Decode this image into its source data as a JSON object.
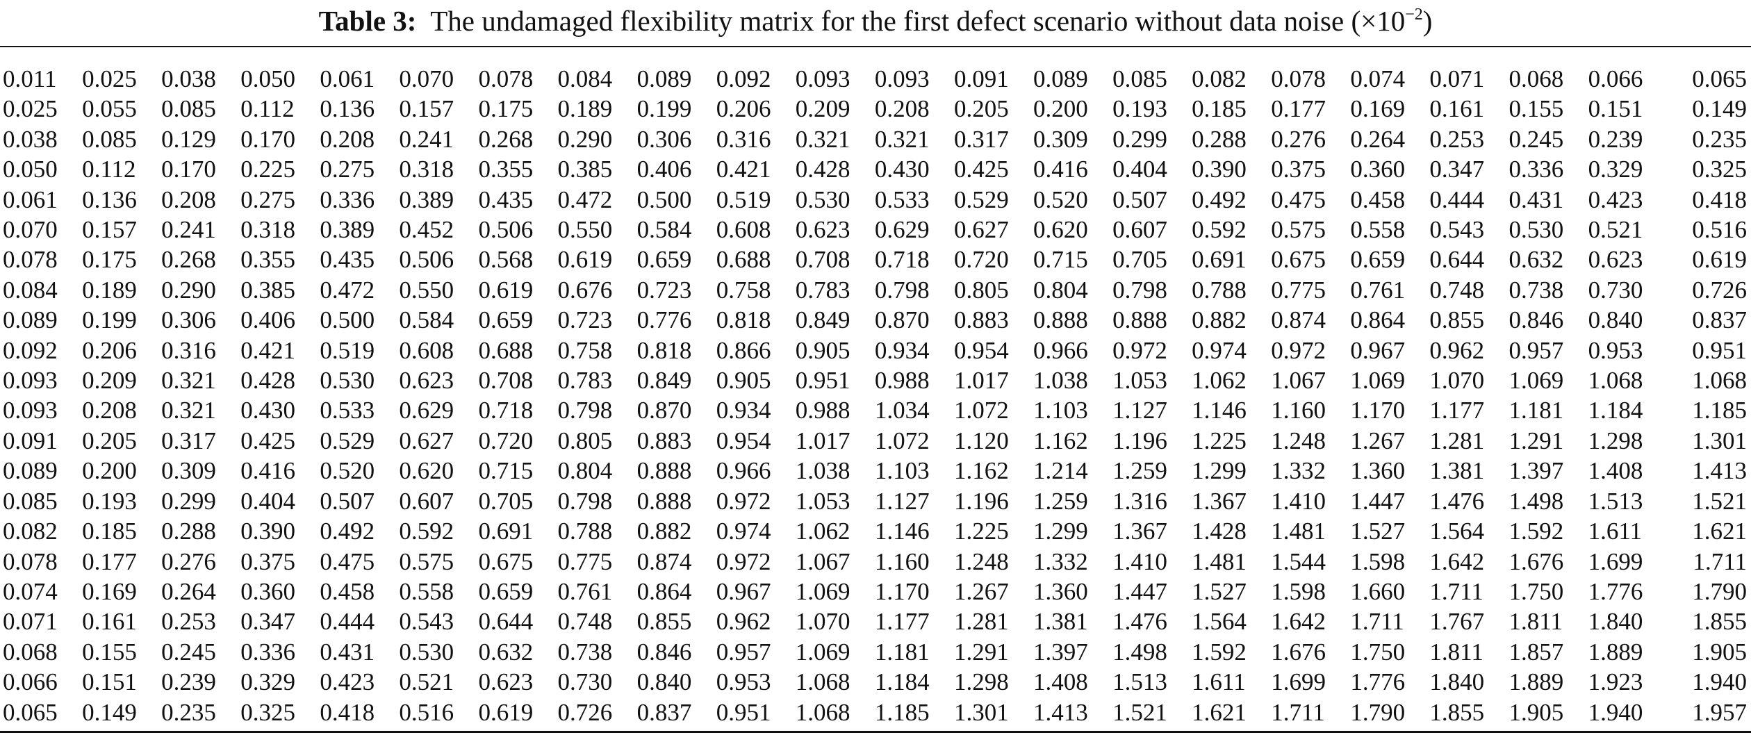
{
  "caption": {
    "label": "Table 3:",
    "text": "The undamaged flexibility matrix for the first defect scenario without data noise (×10",
    "exponent": "−2",
    "close": ")"
  },
  "matrix": [
    [
      "0.011",
      "0.025",
      "0.038",
      "0.050",
      "0.061",
      "0.070",
      "0.078",
      "0.084",
      "0.089",
      "0.092",
      "0.093",
      "0.093",
      "0.091",
      "0.089",
      "0.085",
      "0.082",
      "0.078",
      "0.074",
      "0.071",
      "0.068",
      "0.066",
      "0.065"
    ],
    [
      "0.025",
      "0.055",
      "0.085",
      "0.112",
      "0.136",
      "0.157",
      "0.175",
      "0.189",
      "0.199",
      "0.206",
      "0.209",
      "0.208",
      "0.205",
      "0.200",
      "0.193",
      "0.185",
      "0.177",
      "0.169",
      "0.161",
      "0.155",
      "0.151",
      "0.149"
    ],
    [
      "0.038",
      "0.085",
      "0.129",
      "0.170",
      "0.208",
      "0.241",
      "0.268",
      "0.290",
      "0.306",
      "0.316",
      "0.321",
      "0.321",
      "0.317",
      "0.309",
      "0.299",
      "0.288",
      "0.276",
      "0.264",
      "0.253",
      "0.245",
      "0.239",
      "0.235"
    ],
    [
      "0.050",
      "0.112",
      "0.170",
      "0.225",
      "0.275",
      "0.318",
      "0.355",
      "0.385",
      "0.406",
      "0.421",
      "0.428",
      "0.430",
      "0.425",
      "0.416",
      "0.404",
      "0.390",
      "0.375",
      "0.360",
      "0.347",
      "0.336",
      "0.329",
      "0.325"
    ],
    [
      "0.061",
      "0.136",
      "0.208",
      "0.275",
      "0.336",
      "0.389",
      "0.435",
      "0.472",
      "0.500",
      "0.519",
      "0.530",
      "0.533",
      "0.529",
      "0.520",
      "0.507",
      "0.492",
      "0.475",
      "0.458",
      "0.444",
      "0.431",
      "0.423",
      "0.418"
    ],
    [
      "0.070",
      "0.157",
      "0.241",
      "0.318",
      "0.389",
      "0.452",
      "0.506",
      "0.550",
      "0.584",
      "0.608",
      "0.623",
      "0.629",
      "0.627",
      "0.620",
      "0.607",
      "0.592",
      "0.575",
      "0.558",
      "0.543",
      "0.530",
      "0.521",
      "0.516"
    ],
    [
      "0.078",
      "0.175",
      "0.268",
      "0.355",
      "0.435",
      "0.506",
      "0.568",
      "0.619",
      "0.659",
      "0.688",
      "0.708",
      "0.718",
      "0.720",
      "0.715",
      "0.705",
      "0.691",
      "0.675",
      "0.659",
      "0.644",
      "0.632",
      "0.623",
      "0.619"
    ],
    [
      "0.084",
      "0.189",
      "0.290",
      "0.385",
      "0.472",
      "0.550",
      "0.619",
      "0.676",
      "0.723",
      "0.758",
      "0.783",
      "0.798",
      "0.805",
      "0.804",
      "0.798",
      "0.788",
      "0.775",
      "0.761",
      "0.748",
      "0.738",
      "0.730",
      "0.726"
    ],
    [
      "0.089",
      "0.199",
      "0.306",
      "0.406",
      "0.500",
      "0.584",
      "0.659",
      "0.723",
      "0.776",
      "0.818",
      "0.849",
      "0.870",
      "0.883",
      "0.888",
      "0.888",
      "0.882",
      "0.874",
      "0.864",
      "0.855",
      "0.846",
      "0.840",
      "0.837"
    ],
    [
      "0.092",
      "0.206",
      "0.316",
      "0.421",
      "0.519",
      "0.608",
      "0.688",
      "0.758",
      "0.818",
      "0.866",
      "0.905",
      "0.934",
      "0.954",
      "0.966",
      "0.972",
      "0.974",
      "0.972",
      "0.967",
      "0.962",
      "0.957",
      "0.953",
      "0.951"
    ],
    [
      "0.093",
      "0.209",
      "0.321",
      "0.428",
      "0.530",
      "0.623",
      "0.708",
      "0.783",
      "0.849",
      "0.905",
      "0.951",
      "0.988",
      "1.017",
      "1.038",
      "1.053",
      "1.062",
      "1.067",
      "1.069",
      "1.070",
      "1.069",
      "1.068",
      "1.068"
    ],
    [
      "0.093",
      "0.208",
      "0.321",
      "0.430",
      "0.533",
      "0.629",
      "0.718",
      "0.798",
      "0.870",
      "0.934",
      "0.988",
      "1.034",
      "1.072",
      "1.103",
      "1.127",
      "1.146",
      "1.160",
      "1.170",
      "1.177",
      "1.181",
      "1.184",
      "1.185"
    ],
    [
      "0.091",
      "0.205",
      "0.317",
      "0.425",
      "0.529",
      "0.627",
      "0.720",
      "0.805",
      "0.883",
      "0.954",
      "1.017",
      "1.072",
      "1.120",
      "1.162",
      "1.196",
      "1.225",
      "1.248",
      "1.267",
      "1.281",
      "1.291",
      "1.298",
      "1.301"
    ],
    [
      "0.089",
      "0.200",
      "0.309",
      "0.416",
      "0.520",
      "0.620",
      "0.715",
      "0.804",
      "0.888",
      "0.966",
      "1.038",
      "1.103",
      "1.162",
      "1.214",
      "1.259",
      "1.299",
      "1.332",
      "1.360",
      "1.381",
      "1.397",
      "1.408",
      "1.413"
    ],
    [
      "0.085",
      "0.193",
      "0.299",
      "0.404",
      "0.507",
      "0.607",
      "0.705",
      "0.798",
      "0.888",
      "0.972",
      "1.053",
      "1.127",
      "1.196",
      "1.259",
      "1.316",
      "1.367",
      "1.410",
      "1.447",
      "1.476",
      "1.498",
      "1.513",
      "1.521"
    ],
    [
      "0.082",
      "0.185",
      "0.288",
      "0.390",
      "0.492",
      "0.592",
      "0.691",
      "0.788",
      "0.882",
      "0.974",
      "1.062",
      "1.146",
      "1.225",
      "1.299",
      "1.367",
      "1.428",
      "1.481",
      "1.527",
      "1.564",
      "1.592",
      "1.611",
      "1.621"
    ],
    [
      "0.078",
      "0.177",
      "0.276",
      "0.375",
      "0.475",
      "0.575",
      "0.675",
      "0.775",
      "0.874",
      "0.972",
      "1.067",
      "1.160",
      "1.248",
      "1.332",
      "1.410",
      "1.481",
      "1.544",
      "1.598",
      "1.642",
      "1.676",
      "1.699",
      "1.711"
    ],
    [
      "0.074",
      "0.169",
      "0.264",
      "0.360",
      "0.458",
      "0.558",
      "0.659",
      "0.761",
      "0.864",
      "0.967",
      "1.069",
      "1.170",
      "1.267",
      "1.360",
      "1.447",
      "1.527",
      "1.598",
      "1.660",
      "1.711",
      "1.750",
      "1.776",
      "1.790"
    ],
    [
      "0.071",
      "0.161",
      "0.253",
      "0.347",
      "0.444",
      "0.543",
      "0.644",
      "0.748",
      "0.855",
      "0.962",
      "1.070",
      "1.177",
      "1.281",
      "1.381",
      "1.476",
      "1.564",
      "1.642",
      "1.711",
      "1.767",
      "1.811",
      "1.840",
      "1.855"
    ],
    [
      "0.068",
      "0.155",
      "0.245",
      "0.336",
      "0.431",
      "0.530",
      "0.632",
      "0.738",
      "0.846",
      "0.957",
      "1.069",
      "1.181",
      "1.291",
      "1.397",
      "1.498",
      "1.592",
      "1.676",
      "1.750",
      "1.811",
      "1.857",
      "1.889",
      "1.905"
    ],
    [
      "0.066",
      "0.151",
      "0.239",
      "0.329",
      "0.423",
      "0.521",
      "0.623",
      "0.730",
      "0.840",
      "0.953",
      "1.068",
      "1.184",
      "1.298",
      "1.408",
      "1.513",
      "1.611",
      "1.699",
      "1.776",
      "1.840",
      "1.889",
      "1.923",
      "1.940"
    ],
    [
      "0.065",
      "0.149",
      "0.235",
      "0.325",
      "0.418",
      "0.516",
      "0.619",
      "0.726",
      "0.837",
      "0.951",
      "1.068",
      "1.185",
      "1.301",
      "1.413",
      "1.521",
      "1.621",
      "1.711",
      "1.790",
      "1.855",
      "1.905",
      "1.940",
      "1.957"
    ]
  ]
}
